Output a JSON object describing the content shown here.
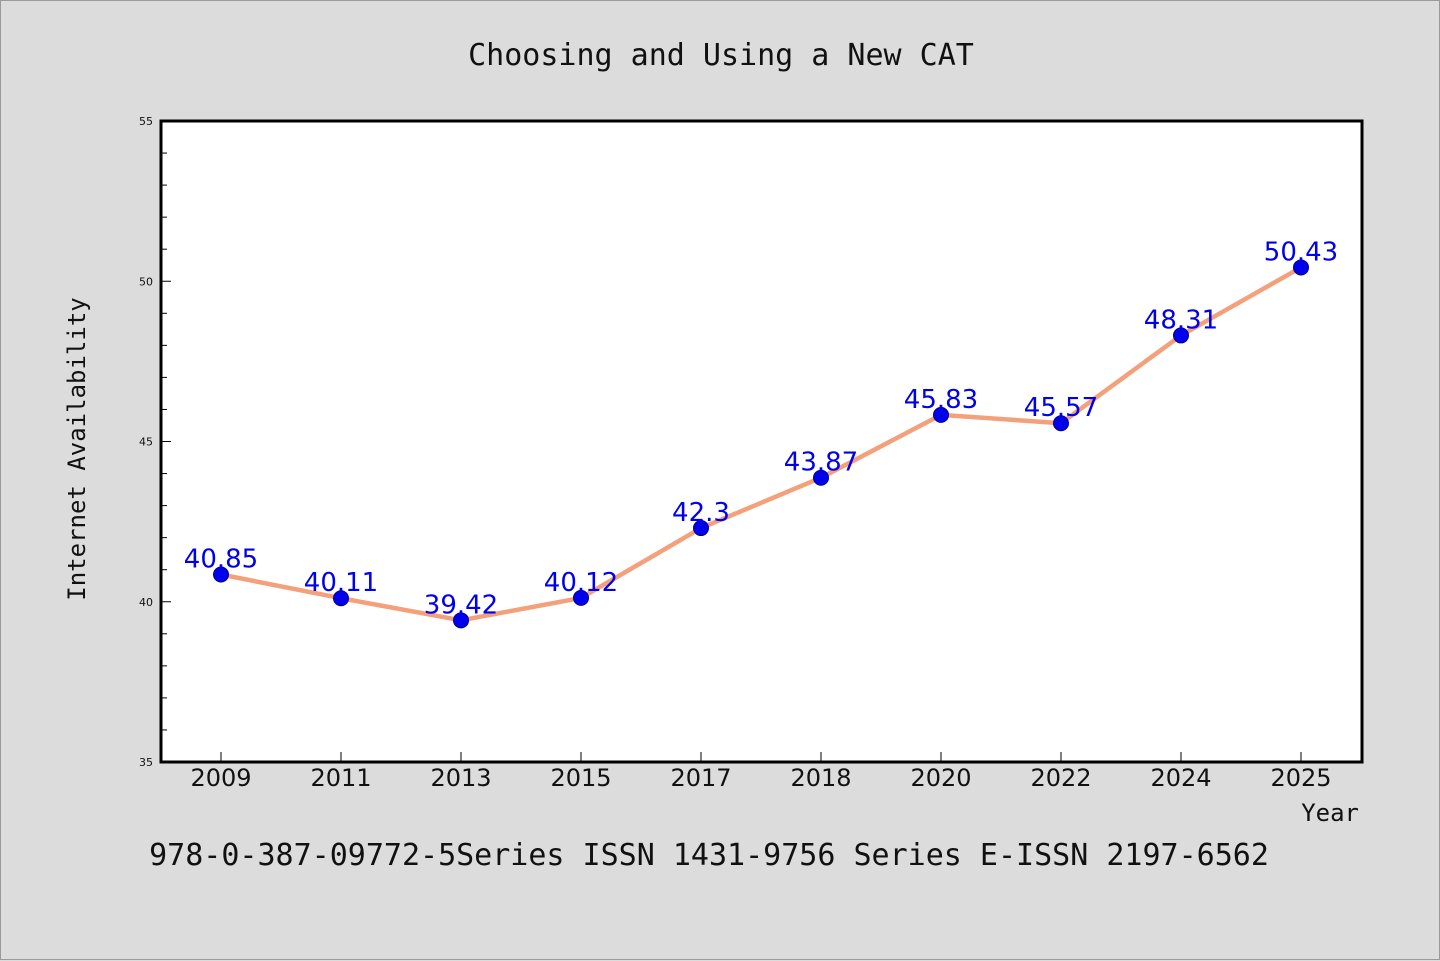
{
  "chart_data": {
    "type": "line",
    "title": "Choosing and Using a New CAT",
    "xlabel": "Year",
    "ylabel": "Internet Availability",
    "categories": [
      "2009",
      "2011",
      "2013",
      "2015",
      "2017",
      "2018",
      "2020",
      "2022",
      "2024",
      "2025"
    ],
    "series": [
      {
        "values": [
          40.85,
          40.11,
          39.42,
          40.12,
          42.3,
          43.87,
          45.83,
          45.57,
          48.31,
          50.43
        ],
        "data_labels": [
          "40.85",
          "40.11",
          "39.42",
          "40.12",
          "42.3",
          "43.87",
          "45.83",
          "45.57",
          "48.31",
          "50.43"
        ]
      }
    ],
    "ylim": [
      35,
      55
    ],
    "yticks": [
      "35",
      "40",
      "45",
      "50",
      "55"
    ],
    "grid": false,
    "legend": "none",
    "colors": {
      "line": "#f4a07a",
      "marker": "#0000ee",
      "label": "#0000ee",
      "background": "#dcdcdc",
      "plot_background": "#ffffff"
    }
  },
  "footer": {
    "text": "978-0-387-09772-5Series ISSN 1431-9756 Series E-ISSN 2197-6562"
  }
}
